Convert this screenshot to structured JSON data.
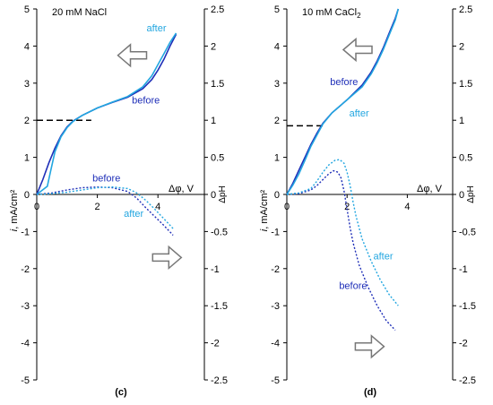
{
  "chart_data": [
    {
      "type": "line",
      "panel_label": "(c)",
      "condition_label": "20 mM NaCl",
      "xlabel": "Δφ, V",
      "ylabel": "i, mA/cm²",
      "ylabel_italic": "i",
      "ylabel_unit": ", mA/cm²",
      "y2label": "ΔpH",
      "xlim": [
        0,
        5
      ],
      "ylim": [
        -5,
        5
      ],
      "y2lim": [
        -2.5,
        2.5
      ],
      "x_ticks": [
        "0",
        "2",
        "4"
      ],
      "y_ticks": [
        "5",
        "4",
        "3",
        "2",
        "1",
        "0",
        "-1",
        "-2",
        "-3",
        "-4",
        "-5"
      ],
      "y2_ticks": [
        "2.5",
        "2",
        "1.5",
        "1",
        "0.5",
        "0",
        "-0.5",
        "-1",
        "-1.5",
        "-2",
        "-2.5"
      ],
      "series": [
        {
          "name": "before",
          "axis": "left",
          "style": "solid",
          "color": "#1f2fb8",
          "x": [
            0,
            0.2,
            0.4,
            0.6,
            0.8,
            1.0,
            1.2,
            1.5,
            2.0,
            2.5,
            3.0,
            3.5,
            3.8,
            4.0,
            4.2,
            4.4,
            4.6
          ],
          "y": [
            0,
            0.4,
            0.85,
            1.25,
            1.58,
            1.82,
            1.98,
            2.13,
            2.33,
            2.48,
            2.62,
            2.85,
            3.1,
            3.35,
            3.65,
            4.0,
            4.32
          ]
        },
        {
          "name": "after",
          "axis": "left",
          "style": "solid",
          "color": "#22a6e0",
          "x": [
            0,
            0.35,
            0.45,
            0.6,
            0.8,
            1.0,
            1.2,
            1.5,
            2.0,
            2.5,
            3.0,
            3.5,
            3.8,
            4.0,
            4.2,
            4.4,
            4.6
          ],
          "y": [
            0,
            0.22,
            0.6,
            1.15,
            1.55,
            1.8,
            1.97,
            2.13,
            2.33,
            2.49,
            2.64,
            2.9,
            3.2,
            3.5,
            3.8,
            4.1,
            4.35
          ]
        },
        {
          "name": "before",
          "axis": "right",
          "style": "dotted",
          "color": "#1f2fb8",
          "x": [
            0,
            0.5,
            1.0,
            1.5,
            2.0,
            2.5,
            3.0,
            3.3,
            3.6,
            3.9,
            4.2,
            4.5
          ],
          "y": [
            0,
            0.02,
            0.06,
            0.09,
            0.1,
            0.09,
            0.04,
            -0.05,
            -0.18,
            -0.3,
            -0.42,
            -0.55
          ]
        },
        {
          "name": "after",
          "axis": "right",
          "style": "dotted",
          "color": "#22a6e0",
          "x": [
            0,
            0.5,
            1.0,
            1.5,
            2.0,
            2.5,
            3.0,
            3.3,
            3.6,
            3.9,
            4.2,
            4.5
          ],
          "y": [
            0,
            0.01,
            0.03,
            0.06,
            0.09,
            0.1,
            0.08,
            0.02,
            -0.08,
            -0.2,
            -0.33,
            -0.46
          ]
        }
      ],
      "limiting_current": {
        "y": 2.0,
        "x": [
          0,
          1.8
        ]
      },
      "labels": [
        {
          "text": "after",
          "color": "#22a6e0",
          "x": 3.95,
          "y": 4.4
        },
        {
          "text": "before",
          "color": "#1f2fb8",
          "x": 3.6,
          "y": 2.45
        },
        {
          "text": "before",
          "color": "#1f2fb8",
          "x": 2.3,
          "y": 0.35
        },
        {
          "text": "after",
          "color": "#22a6e0",
          "x": 3.2,
          "y": -0.6
        }
      ],
      "arrows": [
        {
          "direction": "left",
          "x": 3.15,
          "y": 3.75
        },
        {
          "direction": "right",
          "x": 4.3,
          "y": -1.7
        }
      ]
    },
    {
      "type": "line",
      "panel_label": "(d)",
      "condition_label": "10 mM CaCl",
      "condition_subscript": "2",
      "xlabel": "Δφ, V",
      "ylabel": "i, mA/cm²",
      "ylabel_italic": "i",
      "ylabel_unit": ", mA/cm²",
      "y2label": "ΔpH",
      "xlim": [
        0,
        5
      ],
      "ylim": [
        -5,
        5
      ],
      "y2lim": [
        -2.5,
        2.5
      ],
      "x_ticks": [
        "0",
        "2",
        "4"
      ],
      "y_ticks": [
        "5",
        "4",
        "3",
        "2",
        "1",
        "0",
        "-1",
        "-2",
        "-3",
        "-4",
        "-5"
      ],
      "y2_ticks": [
        "2.5",
        "2",
        "1.5",
        "1",
        "0.5",
        "0",
        "-0.5",
        "-1",
        "-1.5",
        "-2",
        "-2.5"
      ],
      "series": [
        {
          "name": "before",
          "axis": "left",
          "style": "solid",
          "color": "#1f2fb8",
          "x": [
            0,
            0.2,
            0.4,
            0.6,
            0.8,
            1.0,
            1.2,
            1.5,
            2.0,
            2.5,
            2.8,
            3.0,
            3.2,
            3.4,
            3.6,
            3.7
          ],
          "y": [
            0,
            0.3,
            0.65,
            1.0,
            1.35,
            1.65,
            1.92,
            2.2,
            2.55,
            2.95,
            3.3,
            3.6,
            3.95,
            4.35,
            4.75,
            5.0
          ]
        },
        {
          "name": "after",
          "axis": "left",
          "style": "solid",
          "color": "#22a6e0",
          "x": [
            0,
            0.2,
            0.4,
            0.6,
            0.8,
            1.0,
            1.2,
            1.5,
            2.0,
            2.5,
            2.8,
            3.0,
            3.2,
            3.4,
            3.6,
            3.7
          ],
          "y": [
            0,
            0.25,
            0.55,
            0.92,
            1.3,
            1.6,
            1.9,
            2.2,
            2.55,
            2.9,
            3.25,
            3.55,
            3.9,
            4.3,
            4.7,
            5.0
          ]
        },
        {
          "name": "before",
          "axis": "right",
          "style": "dotted",
          "color": "#1f2fb8",
          "x": [
            0,
            0.4,
            0.8,
            1.0,
            1.2,
            1.4,
            1.55,
            1.7,
            1.8,
            1.9,
            2.0,
            2.1,
            2.2,
            2.4,
            2.7,
            3.0,
            3.3,
            3.6
          ],
          "y": [
            0,
            0.01,
            0.06,
            0.12,
            0.2,
            0.28,
            0.32,
            0.3,
            0.22,
            0.05,
            -0.2,
            -0.45,
            -0.65,
            -0.95,
            -1.25,
            -1.5,
            -1.7,
            -1.83
          ]
        },
        {
          "name": "after",
          "axis": "right",
          "style": "dotted",
          "color": "#22a6e0",
          "x": [
            0,
            0.4,
            0.8,
            1.0,
            1.2,
            1.4,
            1.6,
            1.75,
            1.9,
            2.0,
            2.1,
            2.2,
            2.3,
            2.5,
            2.8,
            3.1,
            3.4,
            3.7
          ],
          "y": [
            0,
            0.02,
            0.08,
            0.18,
            0.3,
            0.4,
            0.46,
            0.47,
            0.42,
            0.3,
            0.12,
            -0.1,
            -0.3,
            -0.6,
            -0.9,
            -1.15,
            -1.35,
            -1.5
          ]
        }
      ],
      "limiting_current": {
        "y": 1.85,
        "x": [
          0,
          1.2
        ]
      },
      "labels": [
        {
          "text": "before",
          "color": "#1f2fb8",
          "x": 1.9,
          "y": 2.95
        },
        {
          "text": "after",
          "color": "#22a6e0",
          "x": 2.4,
          "y": 2.1
        },
        {
          "text": "after",
          "color": "#22a6e0",
          "x": 3.2,
          "y": -1.75
        },
        {
          "text": "before",
          "color": "#1f2fb8",
          "x": 2.2,
          "y": -2.55
        }
      ],
      "arrows": [
        {
          "direction": "left",
          "x": 2.35,
          "y": 3.9
        },
        {
          "direction": "right",
          "x": 2.75,
          "y": -4.1
        }
      ]
    }
  ],
  "colors": {
    "axis": "#000000",
    "dash": "#000000",
    "arrow_stroke": "#777777",
    "arrow_fill": "#ffffff"
  }
}
